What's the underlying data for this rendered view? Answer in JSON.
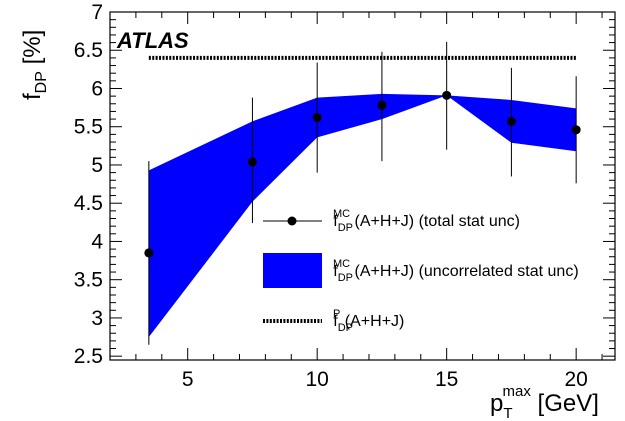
{
  "chart_data": {
    "type": "line",
    "annotation": "ATLAS",
    "xlabel": {
      "main": "p",
      "sub": "T",
      "sup": "max",
      "unit": " [GeV]"
    },
    "ylabel": {
      "main": "f",
      "sub": "DP",
      "unit": " [%]"
    },
    "xlim": [
      2,
      21.5
    ],
    "ylim": [
      2.45,
      7
    ],
    "x_ticks": [
      "5",
      "10",
      "15",
      "20"
    ],
    "y_ticks": [
      "2.5",
      "3",
      "3.5",
      "4",
      "4.5",
      "5",
      "5.5",
      "6",
      "6.5",
      "7"
    ],
    "grid": false,
    "legend_position": "lower-right",
    "series": [
      {
        "kind": "points",
        "label_main": "f",
        "label_sub": "DP",
        "label_sup": "MC",
        "label_rest": " (A+H+J) (total stat unc)",
        "x": [
          3.5,
          7.5,
          10.0,
          12.5,
          15.0,
          17.5,
          20.0
        ],
        "y": [
          3.85,
          5.04,
          5.62,
          5.78,
          5.91,
          5.57,
          5.46
        ],
        "err_low": [
          1.2,
          0.8,
          0.72,
          0.73,
          0.71,
          0.72,
          0.7
        ],
        "err_high": [
          1.2,
          0.84,
          0.72,
          0.7,
          0.7,
          0.7,
          0.7
        ],
        "color": "#000000"
      },
      {
        "kind": "band",
        "label_main": "f",
        "label_sub": "DP",
        "label_sup": "MC",
        "label_rest": " (A+H+J) (uncorrelated stat unc)",
        "x": [
          3.5,
          7.5,
          10.0,
          12.5,
          15.0,
          17.5,
          20.0
        ],
        "upper": [
          4.93,
          5.57,
          5.88,
          5.93,
          5.91,
          5.85,
          5.74
        ],
        "lower": [
          2.75,
          4.52,
          5.36,
          5.6,
          5.91,
          5.29,
          5.18
        ],
        "color": "#0000ff"
      },
      {
        "kind": "dashed",
        "label_main": "f",
        "label_sub": "DP",
        "label_sup": "P",
        "label_rest": " (A+H+J)",
        "x": [
          3.5,
          20.0
        ],
        "y": [
          6.4,
          6.4
        ],
        "color": "#000000"
      }
    ]
  }
}
